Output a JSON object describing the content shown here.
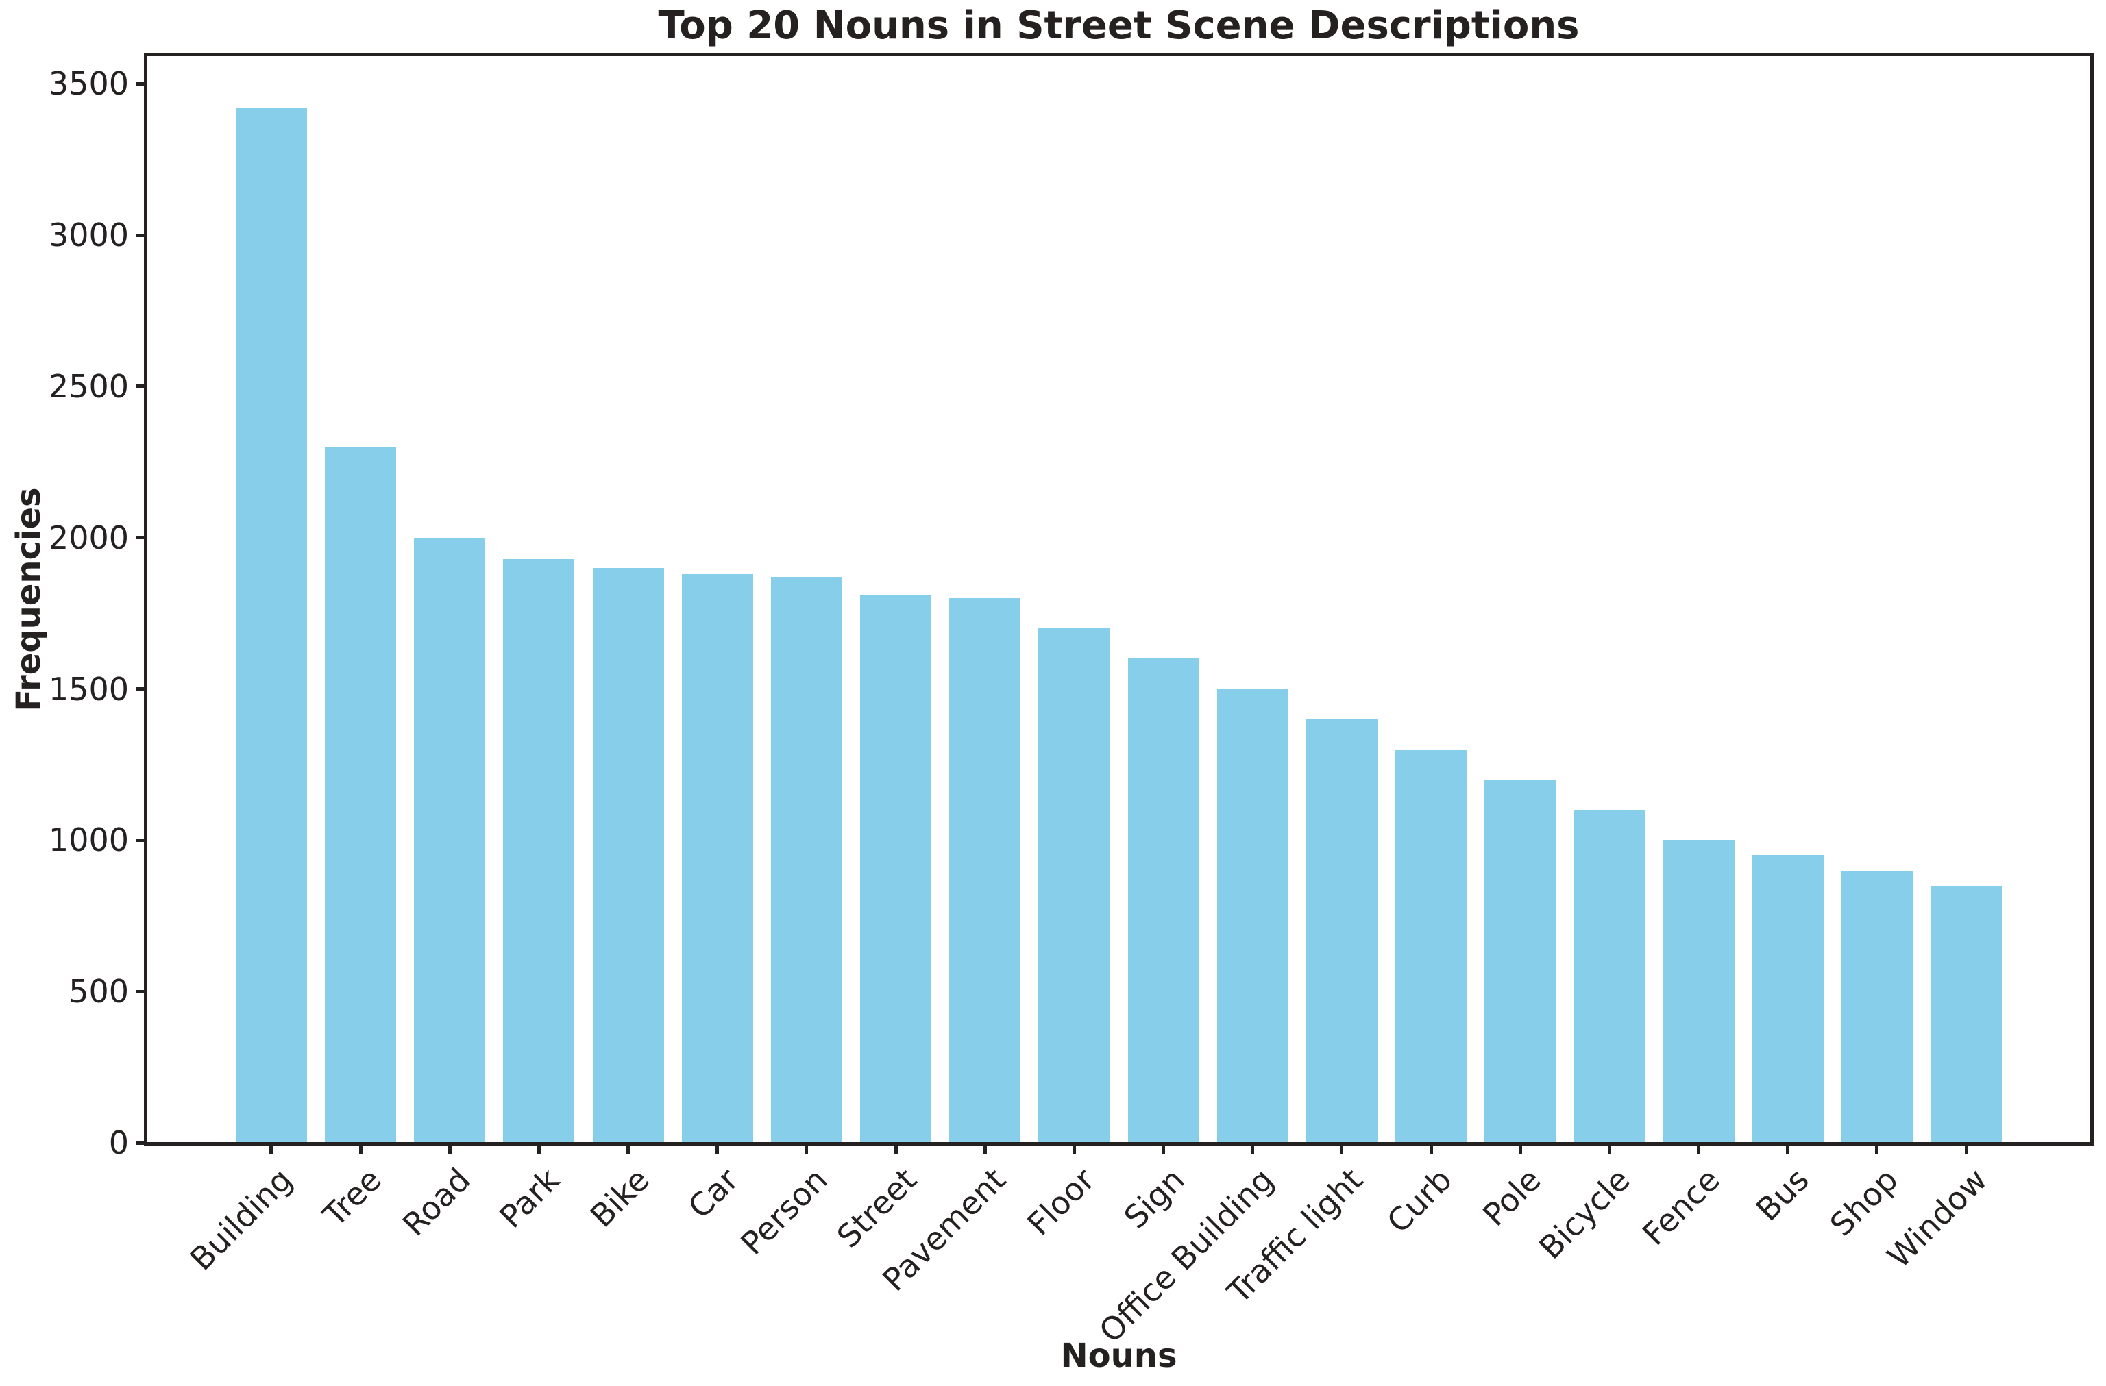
{
  "chart_data": {
    "type": "bar",
    "title": "Top 20 Nouns in Street Scene Descriptions",
    "xlabel": "Nouns",
    "ylabel": "Frequencies",
    "categories": [
      "Building",
      "Tree",
      "Road",
      "Park",
      "Bike",
      "Car",
      "Person",
      "Street",
      "Pavement",
      "Floor",
      "Sign",
      "Office Building",
      "Traffic light",
      "Curb",
      "Pole",
      "Bicycle",
      "Fence",
      "Bus",
      "Shop",
      "Window"
    ],
    "values": [
      3420,
      2300,
      2000,
      1930,
      1900,
      1880,
      1870,
      1810,
      1800,
      1700,
      1600,
      1500,
      1400,
      1300,
      1200,
      1100,
      1000,
      950,
      900,
      850
    ],
    "yticks": [
      0,
      500,
      1000,
      1500,
      2000,
      2500,
      3000,
      3500
    ],
    "ylim": [
      0,
      3591
    ],
    "x_tick_rotation": 45,
    "grid": false,
    "legend": null,
    "bar_color": "#87CEEB",
    "ink_color": "#262121",
    "background_color": "#ffffff"
  }
}
